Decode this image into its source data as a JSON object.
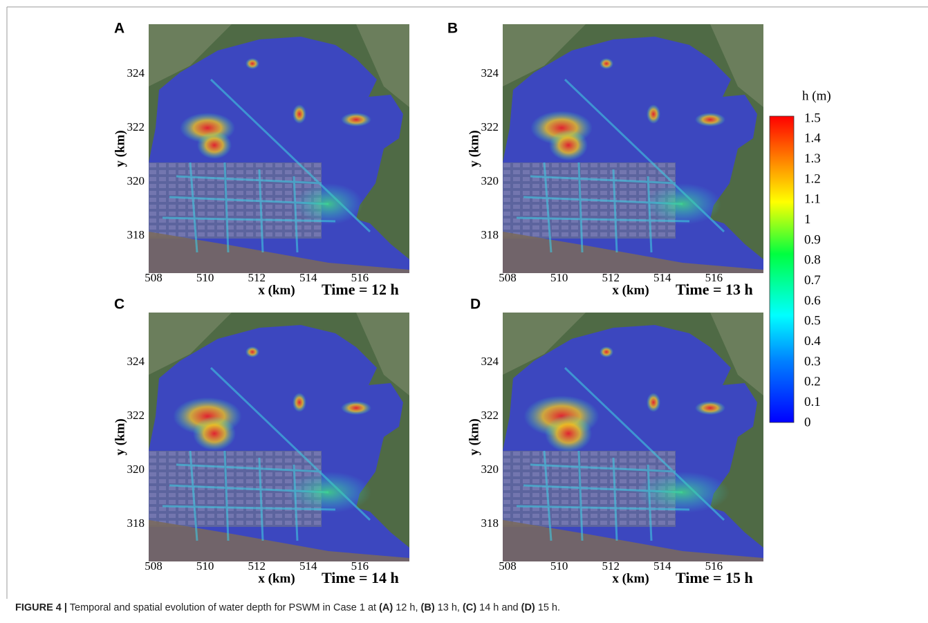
{
  "figure": {
    "panels": [
      {
        "label": "A",
        "time_label": "Time = 12 h"
      },
      {
        "label": "B",
        "time_label": "Time = 13 h"
      },
      {
        "label": "C",
        "time_label": "Time = 14 h"
      },
      {
        "label": "D",
        "time_label": "Time = 15 h"
      }
    ],
    "xlabel": "x (km)",
    "ylabel": "y (km)",
    "xticks": [
      508,
      510,
      512,
      514,
      516
    ],
    "yticks": [
      318,
      320,
      322,
      324
    ],
    "colorbar": {
      "title": "h (m)",
      "ticks": [
        1.5,
        1.4,
        1.3,
        1.2,
        1.1,
        1,
        0.9,
        0.8,
        0.7,
        0.6,
        0.5,
        0.4,
        0.3,
        0.2,
        0.1,
        0
      ]
    }
  },
  "caption": {
    "label": "FIGURE 4 |",
    "parts": [
      "Temporal and spatial evolution of water depth for PSWM in Case 1 at ",
      "(A)",
      " 12 h, ",
      "(B)",
      " 13 h, ",
      "(C)",
      " 14 h and ",
      "(D)",
      " 15 h."
    ]
  }
}
